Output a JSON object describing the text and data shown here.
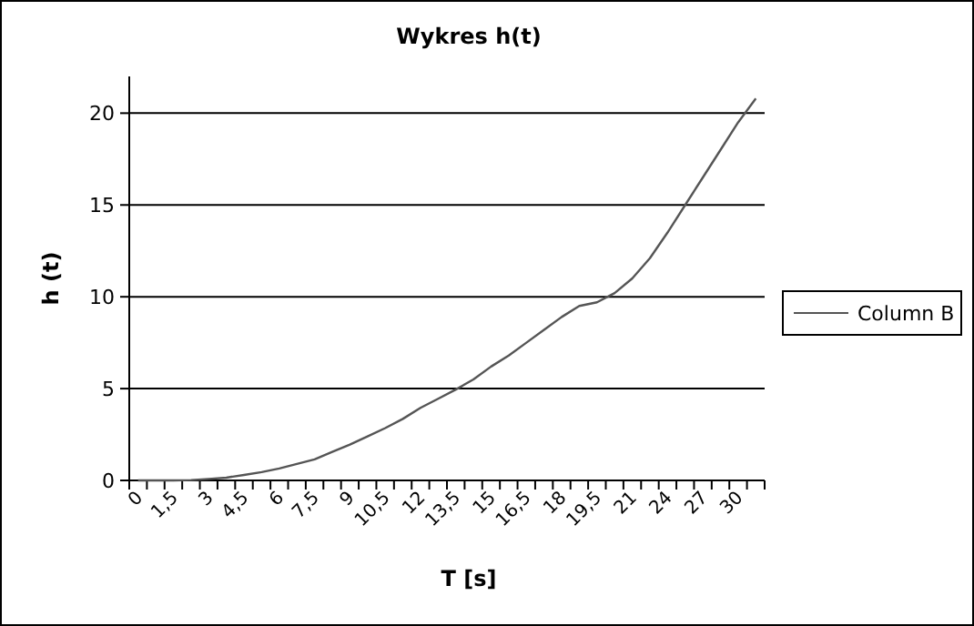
{
  "chart_data": {
    "type": "line",
    "title": "Wykres h(t)",
    "xlabel": "T [s]",
    "ylabel": "h (t)",
    "categories": [
      "0",
      null,
      "1,5",
      null,
      "3",
      null,
      "4,5",
      null,
      "6",
      null,
      "7,5",
      null,
      "9",
      null,
      "10,5",
      null,
      "12",
      null,
      "13,5",
      null,
      "15",
      null,
      "16,5",
      null,
      "18",
      null,
      "19,5",
      null,
      "21",
      null,
      "24",
      null,
      "27",
      null,
      "30",
      null
    ],
    "series": [
      {
        "name": "Column B",
        "color": "#555555",
        "values": [
          0,
          0,
          0,
          0.02,
          0.08,
          0.15,
          0.3,
          0.45,
          0.65,
          0.9,
          1.15,
          1.55,
          1.95,
          2.4,
          2.85,
          3.35,
          3.95,
          4.45,
          4.95,
          5.5,
          6.2,
          6.8,
          7.5,
          8.2,
          8.9,
          9.5,
          9.7,
          10.2,
          11.0,
          12.1,
          13.5,
          15.0,
          16.5,
          18.0,
          19.5,
          20.8
        ]
      }
    ],
    "ylim": [
      0,
      22
    ],
    "yticks": [
      0,
      5,
      10,
      15,
      20
    ],
    "grid": "y",
    "legend": "right",
    "marker": "none",
    "line_style": "solid"
  }
}
